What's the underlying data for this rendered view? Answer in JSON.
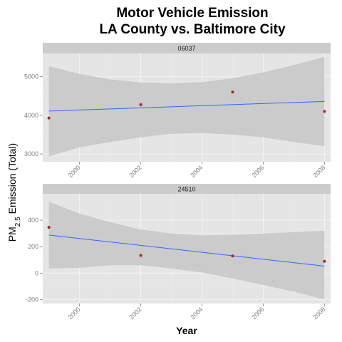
{
  "chart_data": {
    "type": "scatter",
    "title_lines": [
      "Motor Vehicle Emission",
      "LA County vs. Baltimore City"
    ],
    "xlabel": "Year",
    "ylabel_main": "PM",
    "ylabel_sub": "2.5",
    "ylabel_rest": " Emission (Total)",
    "xlim": [
      1998.8,
      2008.2
    ],
    "xticks": [
      2000,
      2002,
      2004,
      2006,
      2008
    ],
    "xtick_labels": [
      "2000",
      "2002",
      "2004",
      "2006",
      "2008"
    ],
    "grid": true,
    "colors": {
      "panel_bg": "#e5e5e5",
      "strip_bg": "#cccccc",
      "grid_major": "#f2f2f2",
      "grid_minor": "#ececec",
      "points": "#b22222",
      "smooth_line": "#3366ff",
      "ribbon": "#c8c8c8"
    },
    "panels": [
      {
        "strip": "06037",
        "ylim": [
          2800,
          5600
        ],
        "yticks": [
          3000,
          4000,
          5000
        ],
        "ytick_labels": [
          "3000",
          "4000",
          "5000"
        ],
        "points": {
          "x": [
            1999,
            2002,
            2005,
            2008
          ],
          "y": [
            3931,
            4275,
            4601,
            4101
          ]
        },
        "fit": {
          "x": [
            1999,
            2008
          ],
          "y": [
            4110,
            4360
          ]
        },
        "band": {
          "x": [
            1999,
            2000,
            2001,
            2002,
            2003,
            2004,
            2005,
            2006,
            2007,
            2008
          ],
          "upper": [
            5270,
            5070,
            4930,
            4850,
            4830,
            4860,
            4960,
            5110,
            5300,
            5510
          ],
          "lower": [
            2940,
            3170,
            3310,
            3430,
            3520,
            3540,
            3500,
            3430,
            3310,
            3200
          ]
        }
      },
      {
        "strip": "24510",
        "ylim": [
          -230,
          600
        ],
        "yticks": [
          -200,
          0,
          200,
          400
        ],
        "ytick_labels": [
          "-200",
          "0",
          "200",
          "400"
        ],
        "points": {
          "x": [
            1999,
            2002,
            2005,
            2008
          ],
          "y": [
            347,
            134,
            130,
            89
          ]
        },
        "fit": {
          "x": [
            1999,
            2008
          ],
          "y": [
            288,
            53
          ]
        },
        "band": {
          "x": [
            1999,
            2000,
            2001,
            2002,
            2003,
            2004,
            2005,
            2006,
            2007,
            2008
          ],
          "upper": [
            540,
            450,
            385,
            330,
            300,
            285,
            290,
            300,
            310,
            320
          ],
          "lower": [
            35,
            40,
            60,
            60,
            35,
            5,
            -40,
            -90,
            -140,
            -200
          ]
        }
      }
    ]
  }
}
